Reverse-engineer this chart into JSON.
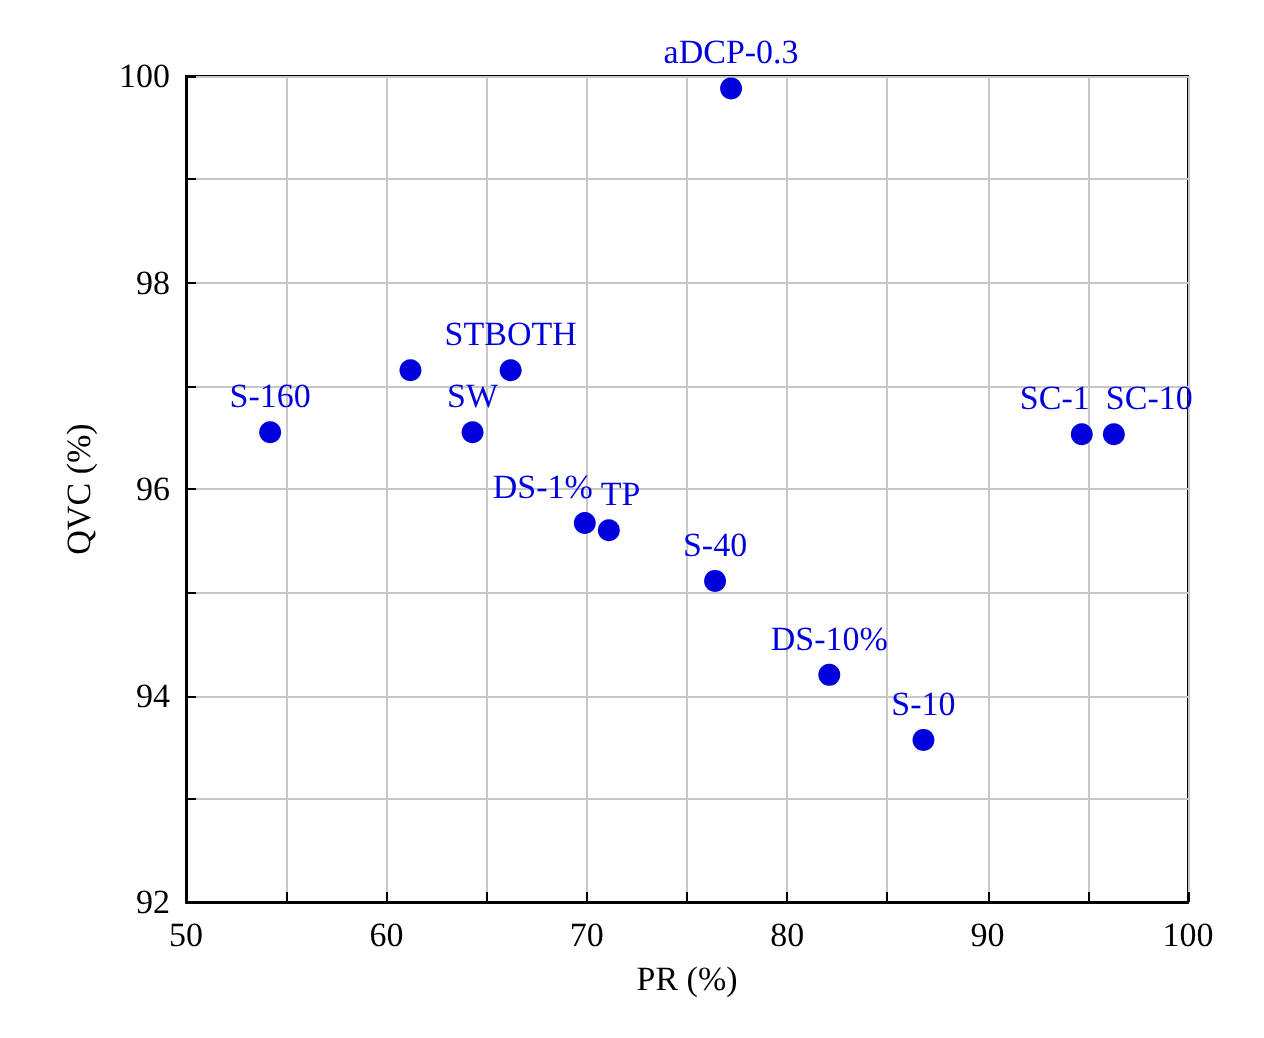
{
  "chart_data": {
    "type": "scatter",
    "xlabel": "PR (%)",
    "ylabel": "QVC (%)",
    "x": [
      54.2,
      61.2,
      66.2,
      64.3,
      69.9,
      71.1,
      76.4,
      82.1,
      86.8,
      94.7,
      96.3,
      77.2
    ],
    "series": [
      {
        "color": "#0000dd",
        "values": [
          96.55,
          97.15,
          97.15,
          96.55,
          95.67,
          95.6,
          95.11,
          94.2,
          93.57,
          96.53,
          96.53,
          99.88
        ],
        "value_labels": [
          "S-160",
          null,
          "STBOTH",
          "SW",
          "DS-1%",
          "TP",
          "S-40",
          "DS-10%",
          "S-10",
          "SC-1",
          "SC-10",
          "aDCP-0.3"
        ]
      }
    ],
    "xlim": [
      50,
      100
    ],
    "ylim": [
      92,
      100
    ],
    "xticks": [
      50,
      {
        "value": 55,
        "label": null
      },
      60,
      {
        "value": 65,
        "label": null
      },
      70,
      {
        "value": 75,
        "label": null
      },
      80,
      {
        "value": 85,
        "label": null
      },
      90,
      {
        "value": 95,
        "label": null
      },
      100
    ],
    "yticks": [
      92,
      {
        "value": 93,
        "label": null
      },
      94,
      {
        "value": 95,
        "label": null
      },
      96,
      {
        "value": 97,
        "label": null
      },
      98,
      {
        "value": 99,
        "label": null
      },
      100
    ],
    "grid": true,
    "marker": "circle"
  }
}
